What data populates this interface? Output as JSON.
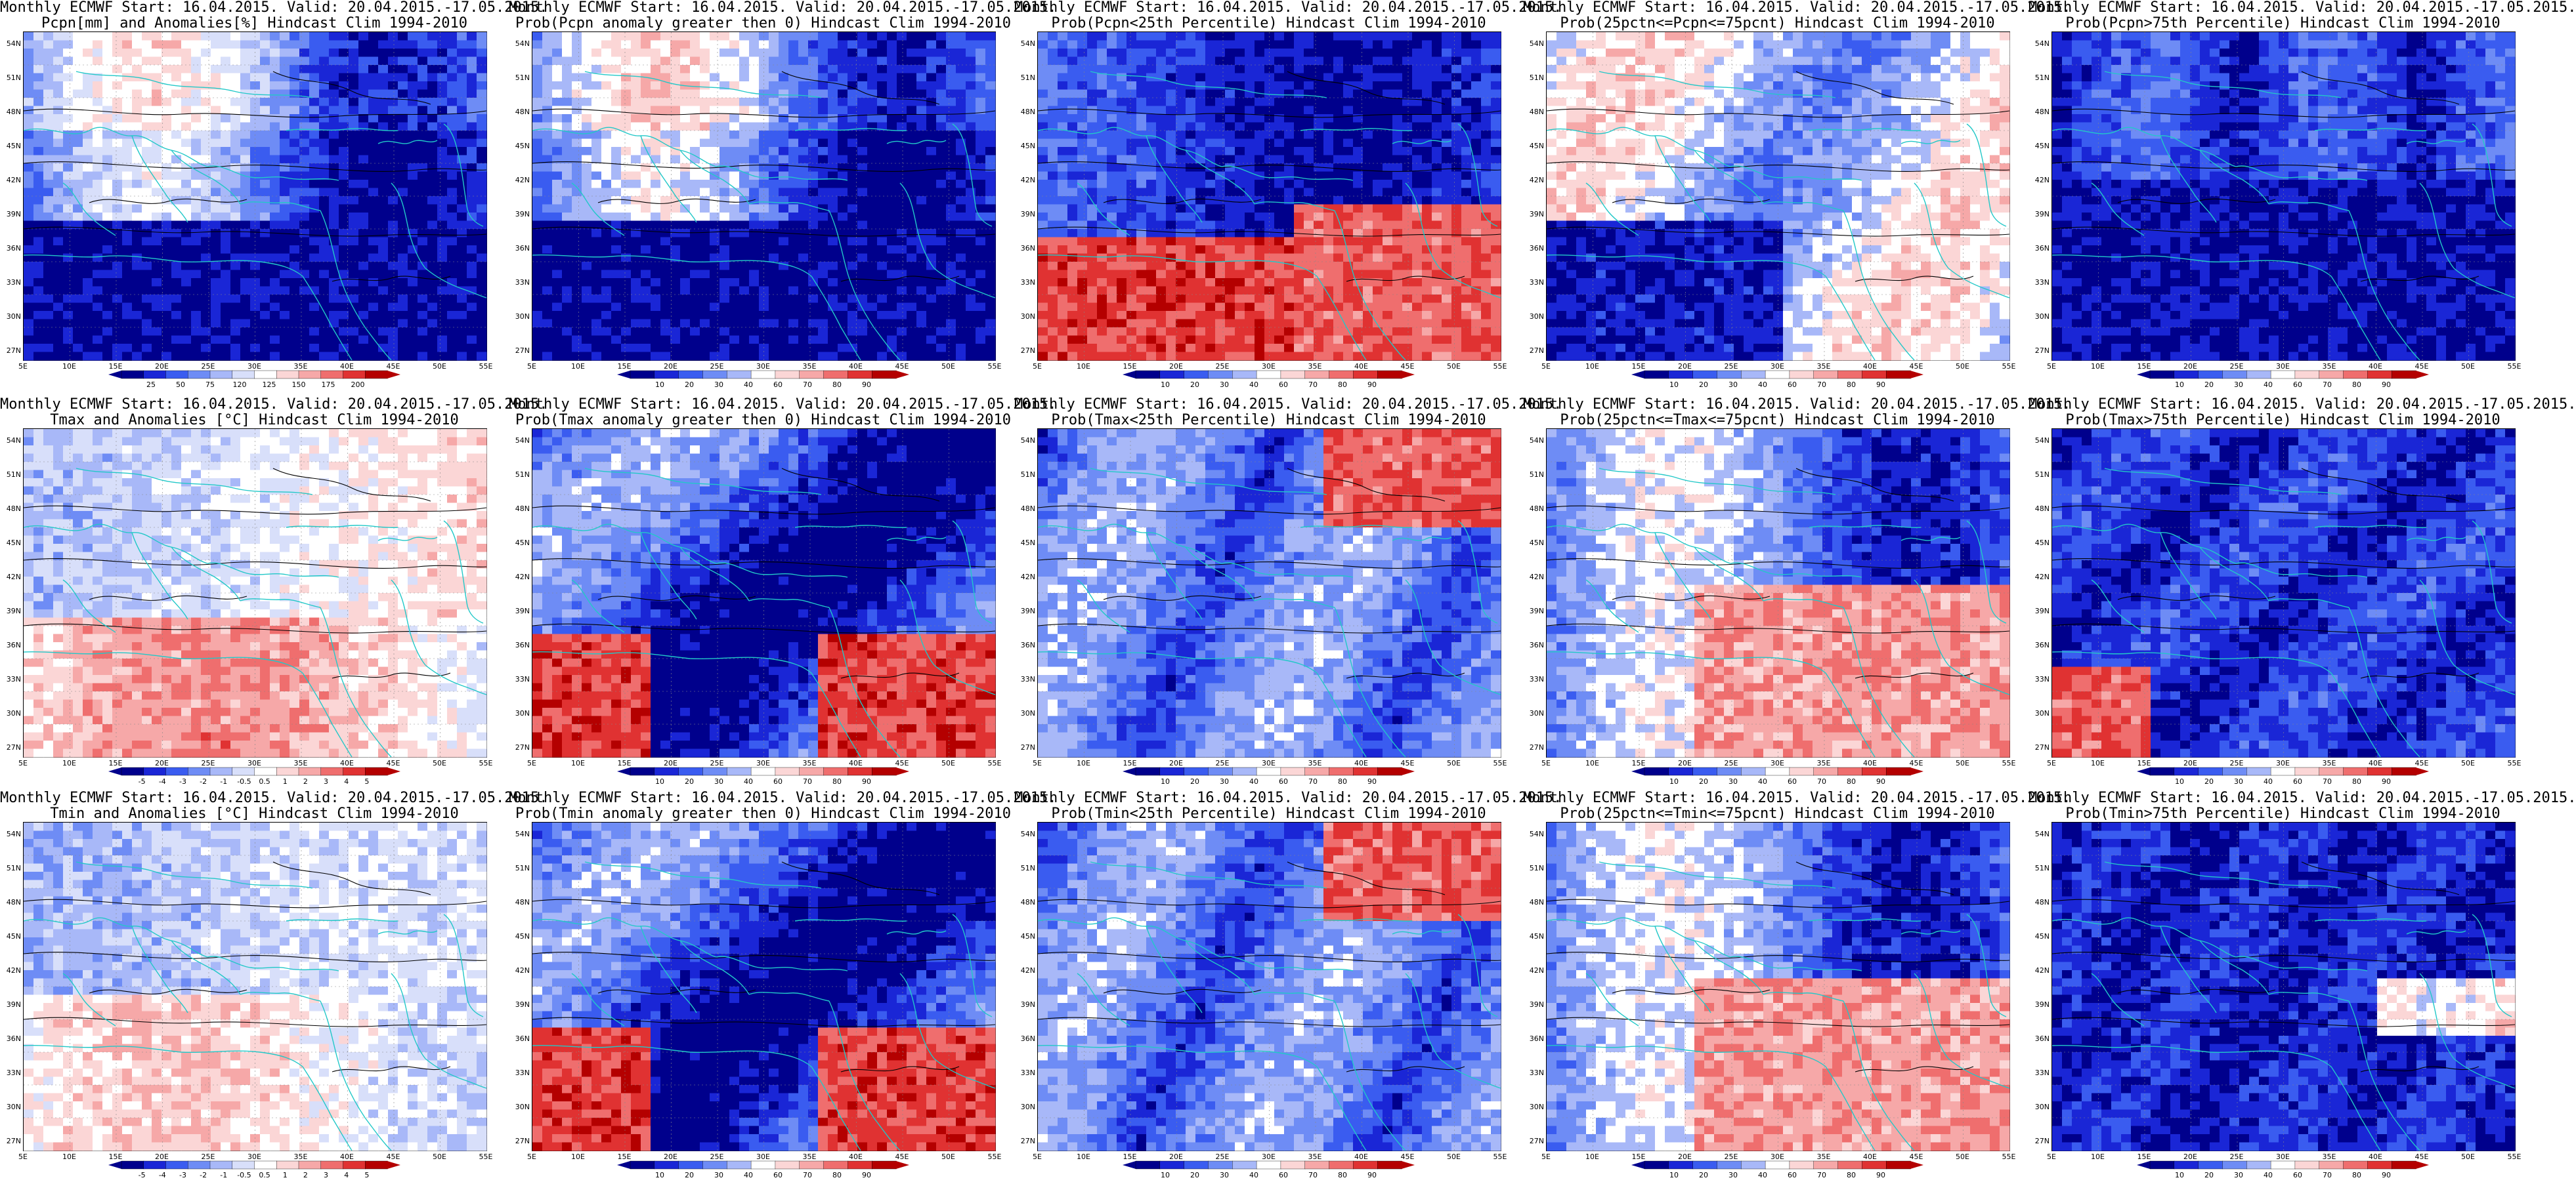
{
  "lat_labels": [
    "54N",
    "51N",
    "48N",
    "45N",
    "42N",
    "39N",
    "36N",
    "33N",
    "30N",
    "27N"
  ],
  "lon_labels": [
    "5E",
    "10E",
    "15E",
    "20E",
    "25E",
    "30E",
    "35E",
    "40E",
    "45E",
    "50E",
    "55E"
  ],
  "colors": {
    "coast": "#22c8c8",
    "contour": "#000000",
    "anom_scale": [
      "#00008c",
      "#1a26d6",
      "#3a5cf0",
      "#6e8cf5",
      "#a8b8f8",
      "#d8dffa",
      "#ffffff",
      "#fbd6d6",
      "#f6a8a8",
      "#ef6e6e",
      "#e03232",
      "#b40000"
    ],
    "prob_scale": [
      "#00008c",
      "#1a26d6",
      "#3a5cf0",
      "#6e8cf5",
      "#a8b8f8",
      "#ffffff",
      "#fbd6d6",
      "#f6a8a8",
      "#ef6e6e",
      "#e03232",
      "#b40000"
    ]
  },
  "panels": [
    {
      "title1": "Monthly ECMWF Start: 16.04.2015. Valid: 20.04.2015.-17.05.2015.",
      "title2": "Pcpn[mm] and Anomalies[%] Hindcast Clim 1994-2010",
      "scale": "anom",
      "colorbar_labels": [
        "25",
        "50",
        "75",
        "120",
        "125",
        "150",
        "175",
        "200"
      ],
      "pattern": "pcpn"
    },
    {
      "title1": "Monthly ECMWF Start: 16.04.2015. Valid: 20.04.2015.-17.05.2015.",
      "title2": "Prob(Pcpn anomaly greater then 0) Hindcast Clim 1994-2010",
      "scale": "prob",
      "colorbar_labels": [
        "10",
        "20",
        "30",
        "40",
        "60",
        "70",
        "80",
        "90"
      ],
      "pattern": "pcpn"
    },
    {
      "title1": "Monthly ECMWF Start: 16.04.2015. Valid: 20.04.2015.-17.05.2015.",
      "title2": "Prob(Pcpn<25th Percentile) Hindcast Clim 1994-2010",
      "scale": "prob",
      "colorbar_labels": [
        "10",
        "20",
        "30",
        "40",
        "60",
        "70",
        "80",
        "90"
      ],
      "pattern": "pcpn_low"
    },
    {
      "title1": "Monthly ECMWF Start: 16.04.2015. Valid: 20.04.2015.-17.05.2015.",
      "title2": "Prob(25pctn<=Pcpn<=75pcnt) Hindcast Clim 1994-2010",
      "scale": "prob",
      "colorbar_labels": [
        "10",
        "20",
        "30",
        "40",
        "60",
        "70",
        "80",
        "90"
      ],
      "pattern": "pcpn_mid"
    },
    {
      "title1": "Monthly ECMWF Start: 16.04.2015. Valid: 20.04.2015.-17.05.2015.",
      "title2": "Prob(Pcpn>75th Percentile) Hindcast Clim 1994-2010",
      "scale": "prob",
      "colorbar_labels": [
        "10",
        "20",
        "30",
        "40",
        "60",
        "70",
        "80",
        "90"
      ],
      "pattern": "pcpn_high"
    },
    {
      "title1": "Monthly ECMWF Start: 16.04.2015. Valid: 20.04.2015.-17.05.2015.",
      "title2": "Tmax and Anomalies [°C] Hindcast Clim 1994-2010",
      "scale": "anom",
      "colorbar_labels": [
        "-5",
        "-4",
        "-3",
        "-2",
        "-1",
        "-0.5",
        "0.5",
        "1",
        "2",
        "3",
        "4",
        "5"
      ],
      "pattern": "tanom"
    },
    {
      "title1": "Monthly ECMWF Start: 16.04.2015. Valid: 20.04.2015.-17.05.2015.",
      "title2": "Prob(Tmax anomaly greater then 0) Hindcast Clim 1994-2010",
      "scale": "prob",
      "colorbar_labels": [
        "10",
        "20",
        "30",
        "40",
        "60",
        "70",
        "80",
        "90"
      ],
      "pattern": "tprob"
    },
    {
      "title1": "Monthly ECMWF Start: 16.04.2015. Valid: 20.04.2015.-17.05.2015.",
      "title2": "Prob(Tmax<25th Percentile) Hindcast Clim 1994-2010",
      "scale": "prob",
      "colorbar_labels": [
        "10",
        "20",
        "30",
        "40",
        "60",
        "70",
        "80",
        "90"
      ],
      "pattern": "tlow"
    },
    {
      "title1": "Monthly ECMWF Start: 16.04.2015. Valid: 20.04.2015.-17.05.2015.",
      "title2": "Prob(25pctn<=Tmax<=75pcnt) Hindcast Clim 1994-2010",
      "scale": "prob",
      "colorbar_labels": [
        "10",
        "20",
        "30",
        "40",
        "60",
        "70",
        "80",
        "90"
      ],
      "pattern": "tmid"
    },
    {
      "title1": "Monthly ECMWF Start: 16.04.2015. Valid: 20.04.2015.-17.05.2015.",
      "title2": "Prob(Tmax>75th Percentile) Hindcast Clim 1994-2010",
      "scale": "prob",
      "colorbar_labels": [
        "10",
        "20",
        "30",
        "40",
        "60",
        "70",
        "80",
        "90"
      ],
      "pattern": "thigh"
    },
    {
      "title1": "Monthly ECMWF Start: 16.04.2015. Valid: 20.04.2015.-17.05.2015.",
      "title2": "Tmin and Anomalies [°C] Hindcast Clim 1994-2010",
      "scale": "anom",
      "colorbar_labels": [
        "-5",
        "-4",
        "-3",
        "-2",
        "-1",
        "-0.5",
        "0.5",
        "1",
        "2",
        "3",
        "4",
        "5"
      ],
      "pattern": "tanom2"
    },
    {
      "title1": "Monthly ECMWF Start: 16.04.2015. Valid: 20.04.2015.-17.05.2015.",
      "title2": "Prob(Tmin anomaly greater then 0) Hindcast Clim 1994-2010",
      "scale": "prob",
      "colorbar_labels": [
        "10",
        "20",
        "30",
        "40",
        "60",
        "70",
        "80",
        "90"
      ],
      "pattern": "tprob"
    },
    {
      "title1": "Monthly ECMWF Start: 16.04.2015. Valid: 20.04.2015.-17.05.2015.",
      "title2": "Prob(Tmin<25th Percentile) Hindcast Clim 1994-2010",
      "scale": "prob",
      "colorbar_labels": [
        "10",
        "20",
        "30",
        "40",
        "60",
        "70",
        "80",
        "90"
      ],
      "pattern": "tlow"
    },
    {
      "title1": "Monthly ECMWF Start: 16.04.2015. Valid: 20.04.2015.-17.05.2015.",
      "title2": "Prob(25pctn<=Tmin<=75pcnt) Hindcast Clim 1994-2010",
      "scale": "prob",
      "colorbar_labels": [
        "10",
        "20",
        "30",
        "40",
        "60",
        "70",
        "80",
        "90"
      ],
      "pattern": "tmid"
    },
    {
      "title1": "Monthly ECMWF Start: 16.04.2015. Valid: 20.04.2015.-17.05.2015.",
      "title2": "Prob(Tmin>75th Percentile) Hindcast Clim 1994-2010",
      "scale": "prob",
      "colorbar_labels": [
        "10",
        "20",
        "30",
        "40",
        "60",
        "70",
        "80",
        "90"
      ],
      "pattern": "thigh2"
    }
  ]
}
